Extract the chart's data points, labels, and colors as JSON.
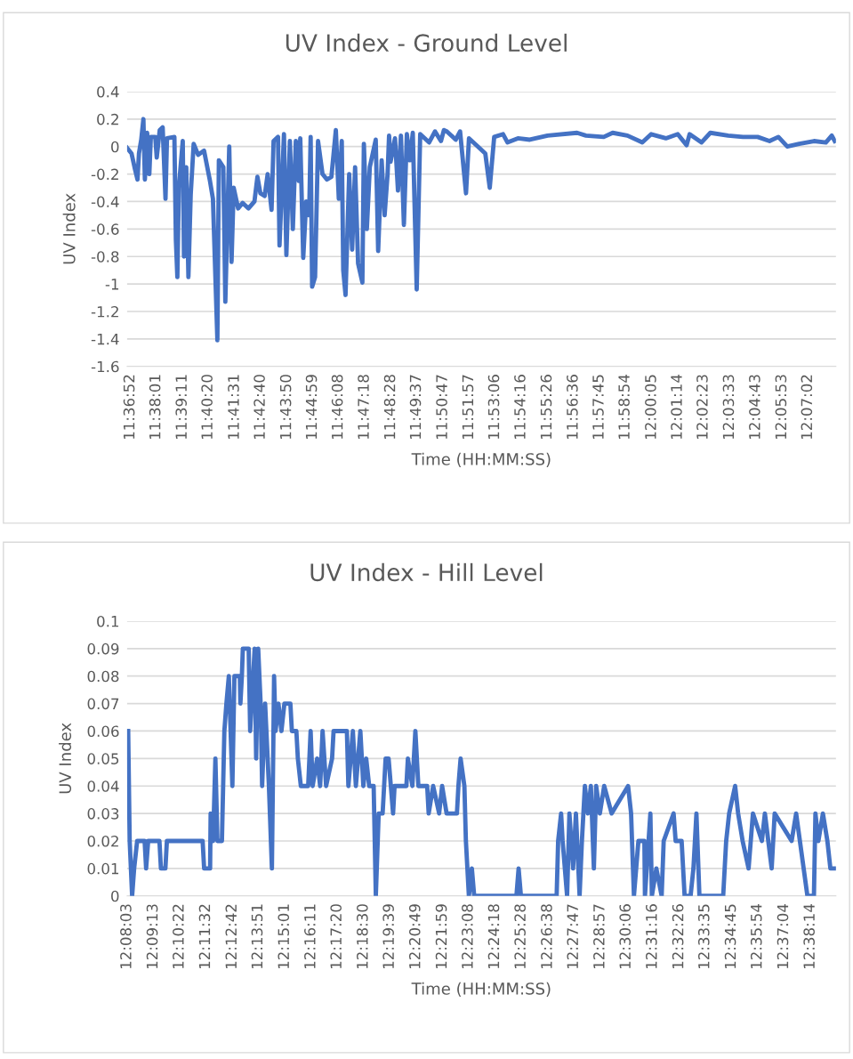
{
  "chart_data": [
    {
      "type": "line",
      "title": "UV Index - Ground Level",
      "xlabel": "Time (HH:MM:SS)",
      "ylabel": "UV Index",
      "grid": "y",
      "marker": "none",
      "line_style": "solid",
      "xlim": [
        11.612,
        12.138
      ],
      "ylim": [
        -1.6,
        0.4
      ],
      "yticks": [
        -1.6,
        -1.4,
        -1.2,
        -1,
        -0.8,
        -0.6,
        -0.4,
        -0.2,
        0,
        0.2,
        0.4
      ],
      "xticks": [
        {
          "value": 11.6144,
          "label": "11:36:52"
        },
        {
          "value": 11.6336,
          "label": "11:38:01"
        },
        {
          "value": 11.6531,
          "label": "11:39:11"
        },
        {
          "value": 11.6722,
          "label": "11:40:20"
        },
        {
          "value": 11.6919,
          "label": "11:41:31"
        },
        {
          "value": 11.7111,
          "label": "11:42:40"
        },
        {
          "value": 11.7306,
          "label": "11:43:50"
        },
        {
          "value": 11.7497,
          "label": "11:44:59"
        },
        {
          "value": 11.7689,
          "label": "11:46:08"
        },
        {
          "value": 11.7883,
          "label": "11:47:18"
        },
        {
          "value": 11.8078,
          "label": "11:48:28"
        },
        {
          "value": 11.8269,
          "label": "11:49:37"
        },
        {
          "value": 11.8464,
          "label": "11:50:47"
        },
        {
          "value": 11.8658,
          "label": "11:51:57"
        },
        {
          "value": 11.885,
          "label": "11:53:06"
        },
        {
          "value": 11.9044,
          "label": "11:54:16"
        },
        {
          "value": 11.9239,
          "label": "11:55:26"
        },
        {
          "value": 11.9433,
          "label": "11:56:36"
        },
        {
          "value": 11.9625,
          "label": "11:57:45"
        },
        {
          "value": 11.9817,
          "label": "11:58:54"
        },
        {
          "value": 12.0014,
          "label": "12:00:05"
        },
        {
          "value": 12.0206,
          "label": "12:01:14"
        },
        {
          "value": 12.0397,
          "label": "12:02:23"
        },
        {
          "value": 12.0592,
          "label": "12:03:33"
        },
        {
          "value": 12.0786,
          "label": "12:04:43"
        },
        {
          "value": 12.0981,
          "label": "12:05:53"
        },
        {
          "value": 12.1172,
          "label": "12:07:02"
        }
      ],
      "series": [
        {
          "color": "#4472c4",
          "x": [
            11.612,
            11.6153,
            11.6175,
            11.6197,
            11.6208,
            11.6225,
            11.6241,
            11.6252,
            11.6269,
            11.6285,
            11.6296,
            11.6329,
            11.634,
            11.6362,
            11.6384,
            11.6405,
            11.6416,
            11.6471,
            11.6482,
            11.6493,
            11.6504,
            11.6533,
            11.6542,
            11.6559,
            11.6575,
            11.6592,
            11.6614,
            11.6647,
            11.6691,
            11.6735,
            11.6757,
            11.679,
            11.6801,
            11.6834,
            11.6849,
            11.6878,
            11.6895,
            11.6911,
            11.6944,
            11.6977,
            11.7021,
            11.7065,
            11.7087,
            11.7109,
            11.7141,
            11.7163,
            11.7192,
            11.7207,
            11.724,
            11.7251,
            11.7284,
            11.7302,
            11.7328,
            11.735,
            11.7372,
            11.7394,
            11.7405,
            11.7427,
            11.7449,
            11.7471,
            11.7482,
            11.7493,
            11.7515,
            11.7537,
            11.757,
            11.7603,
            11.7636,
            11.7669,
            11.7691,
            11.7713,
            11.7724,
            11.7741,
            11.7768,
            11.779,
            11.7812,
            11.7834,
            11.7866,
            11.7877,
            11.7899,
            11.7921,
            11.7965,
            11.7983,
            11.8009,
            11.8031,
            11.8053,
            11.8064,
            11.8075,
            11.8108,
            11.813,
            11.8152,
            11.8174,
            11.8196,
            11.8218,
            11.824,
            11.8269,
            11.8295,
            11.8361,
            11.8405,
            11.8449,
            11.8471,
            11.8493,
            11.8559,
            11.8591,
            11.8635,
            11.8657,
            11.8734,
            11.8778,
            11.8811,
            11.8844,
            11.891,
            11.8943,
            11.902,
            11.9108,
            11.924,
            11.9459,
            11.9525,
            11.9657,
            11.9723,
            11.9833,
            11.9943,
            12.0009,
            12.0118,
            12.0206,
            12.0272,
            12.0294,
            12.0382,
            12.0448,
            12.058,
            12.069,
            12.0799,
            12.0887,
            12.0953,
            12.1019,
            12.1107,
            12.1217,
            12.1305,
            12.1349,
            12.1371
          ],
          "values": [
            -0.01,
            -0.05,
            -0.15,
            -0.24,
            -0.05,
            0.05,
            0.2,
            -0.24,
            0.1,
            -0.2,
            0.07,
            0.07,
            -0.08,
            0.12,
            0.14,
            -0.38,
            0.06,
            0.07,
            -0.68,
            -0.95,
            -0.3,
            0.04,
            -0.8,
            -0.15,
            -0.95,
            -0.35,
            0.02,
            -0.06,
            -0.03,
            -0.25,
            -0.38,
            -1.41,
            -0.1,
            -0.15,
            -1.13,
            0,
            -0.84,
            -0.3,
            -0.45,
            -0.41,
            -0.45,
            -0.4,
            -0.22,
            -0.34,
            -0.36,
            -0.2,
            -0.46,
            0.04,
            0.07,
            -0.72,
            0.09,
            -0.79,
            0.04,
            -0.6,
            0.04,
            -0.25,
            0.06,
            -0.81,
            -0.4,
            -0.5,
            0.07,
            -1.02,
            -0.95,
            0.04,
            -0.2,
            -0.24,
            -0.22,
            0.12,
            -0.38,
            0.04,
            -0.9,
            -1.08,
            -0.2,
            -0.75,
            -0.15,
            -0.85,
            -0.99,
            0.02,
            -0.6,
            -0.15,
            0.05,
            -0.76,
            -0.1,
            -0.5,
            -0.2,
            0.08,
            -0.11,
            0.06,
            -0.32,
            0.08,
            -0.57,
            0.09,
            -0.1,
            0.1,
            -1.04,
            0.09,
            0.03,
            0.11,
            0.04,
            0.12,
            0.11,
            0.05,
            0.11,
            -0.34,
            0.06,
            -0.01,
            -0.05,
            -0.3,
            0.07,
            0.09,
            0.03,
            0.06,
            0.05,
            0.08,
            0.1,
            0.08,
            0.07,
            0.1,
            0.08,
            0.03,
            0.09,
            0.06,
            0.09,
            0.01,
            0.09,
            0.03,
            0.1,
            0.08,
            0.07,
            0.07,
            0.04,
            0.07,
            0,
            0.02,
            0.04,
            0.03,
            0.08,
            0.04
          ]
        }
      ]
    },
    {
      "type": "line",
      "title": "UV Index - Hill Level",
      "xlabel": "Time (HH:MM:SS)",
      "ylabel": "UV Index",
      "grid": "y",
      "marker": "none",
      "line_style": "solid",
      "xlim": [
        12.1342,
        12.656
      ],
      "ylim": [
        0,
        0.1
      ],
      "yticks": [
        0,
        0.01,
        0.02,
        0.03,
        0.04,
        0.05,
        0.06,
        0.07,
        0.08,
        0.09,
        0.1
      ],
      "xticks": [
        {
          "value": 12.1342,
          "label": "12:08:03"
        },
        {
          "value": 12.1536,
          "label": "12:09:13"
        },
        {
          "value": 12.1728,
          "label": "12:10:22"
        },
        {
          "value": 12.1922,
          "label": "12:11:32"
        },
        {
          "value": 12.2117,
          "label": "12:12:42"
        },
        {
          "value": 12.2308,
          "label": "12:13:51"
        },
        {
          "value": 12.2503,
          "label": "12:15:01"
        },
        {
          "value": 12.2697,
          "label": "12:16:11"
        },
        {
          "value": 12.2889,
          "label": "12:17:20"
        },
        {
          "value": 12.3083,
          "label": "12:18:30"
        },
        {
          "value": 12.3275,
          "label": "12:19:39"
        },
        {
          "value": 12.3469,
          "label": "12:20:49"
        },
        {
          "value": 12.3664,
          "label": "12:21:59"
        },
        {
          "value": 12.3856,
          "label": "12:23:08"
        },
        {
          "value": 12.405,
          "label": "12:24:18"
        },
        {
          "value": 12.4244,
          "label": "12:25:28"
        },
        {
          "value": 12.4439,
          "label": "12:26:38"
        },
        {
          "value": 12.4631,
          "label": "12:27:47"
        },
        {
          "value": 12.4825,
          "label": "12:28:57"
        },
        {
          "value": 12.5017,
          "label": "12:30:06"
        },
        {
          "value": 12.5211,
          "label": "12:31:16"
        },
        {
          "value": 12.5406,
          "label": "12:32:26"
        },
        {
          "value": 12.5597,
          "label": "12:33:35"
        },
        {
          "value": 12.5792,
          "label": "12:34:45"
        },
        {
          "value": 12.5983,
          "label": "12:35:54"
        },
        {
          "value": 12.6178,
          "label": "12:37:04"
        },
        {
          "value": 12.6372,
          "label": "12:38:14"
        }
      ],
      "series": [
        {
          "color": "#4472c4",
          "x": [
            12.135,
            12.1361,
            12.1379,
            12.1394,
            12.1416,
            12.1471,
            12.1482,
            12.1497,
            12.158,
            12.1591,
            12.1624,
            12.1635,
            12.1898,
            12.1909,
            12.1953,
            12.1957,
            12.1975,
            12.1992,
            12.2007,
            12.204,
            12.2058,
            12.2073,
            12.2091,
            12.2117,
            12.2132,
            12.2172,
            12.2176,
            12.2187,
            12.2194,
            12.2237,
            12.2248,
            12.2281,
            12.2292,
            12.2307,
            12.2325,
            12.2336,
            12.2358,
            12.2386,
            12.2408,
            12.2424,
            12.2435,
            12.2456,
            12.2478,
            12.25,
            12.2544,
            12.2555,
            12.2588,
            12.2599,
            12.2621,
            12.2675,
            12.2693,
            12.2708,
            12.2741,
            12.2763,
            12.2781,
            12.2807,
            12.2851,
            12.2862,
            12.296,
            12.2971,
            12.3004,
            12.3026,
            12.3059,
            12.3081,
            12.3102,
            12.3124,
            12.3157,
            12.3173,
            12.3194,
            12.3223,
            12.3245,
            12.3267,
            12.33,
            12.3311,
            12.3398,
            12.3409,
            12.3442,
            12.3464,
            12.3486,
            12.3551,
            12.3562,
            12.3595,
            12.3639,
            12.3661,
            12.3694,
            12.377,
            12.3781,
            12.3797,
            12.3825,
            12.3836,
            12.3847,
            12.3858,
            12.388,
            12.3897,
            12.4208,
            12.4224,
            12.4241,
            12.4504,
            12.4515,
            12.4537,
            12.4548,
            12.4581,
            12.4598,
            12.4625,
            12.4646,
            12.4673,
            12.469,
            12.4712,
            12.4734,
            12.4756,
            12.4778,
            12.4795,
            12.4822,
            12.4854,
            12.4909,
            12.503,
            12.5052,
            12.5073,
            12.5106,
            12.515,
            12.5154,
            12.5194,
            12.5205,
            12.5238,
            12.5277,
            12.5292,
            12.5365,
            12.538,
            12.5424,
            12.5446,
            12.549,
            12.5511,
            12.5533,
            12.5555,
            12.573,
            12.5752,
            12.5774,
            12.5818,
            12.584,
            12.5873,
            12.5917,
            12.5949,
            12.6015,
            12.6037,
            12.6087,
            12.6109,
            12.6234,
            12.6267,
            12.635,
            12.6398,
            12.6409,
            12.6431,
            12.6464,
            12.6497,
            12.6519,
            12.6552
          ],
          "values": [
            0.06,
            0.02,
            0,
            0.01,
            0.02,
            0.02,
            0.01,
            0.02,
            0.02,
            0.01,
            0.01,
            0.02,
            0.02,
            0.01,
            0.01,
            0.03,
            0.02,
            0.05,
            0.02,
            0.02,
            0.06,
            0.07,
            0.08,
            0.04,
            0.08,
            0.08,
            0.07,
            0.08,
            0.09,
            0.09,
            0.06,
            0.09,
            0.05,
            0.09,
            0.07,
            0.04,
            0.07,
            0.04,
            0.01,
            0.08,
            0.06,
            0.07,
            0.06,
            0.07,
            0.07,
            0.06,
            0.06,
            0.05,
            0.04,
            0.04,
            0.06,
            0.04,
            0.05,
            0.04,
            0.06,
            0.04,
            0.05,
            0.06,
            0.06,
            0.04,
            0.06,
            0.04,
            0.06,
            0.04,
            0.05,
            0.04,
            0.04,
            0,
            0.03,
            0.03,
            0.05,
            0.05,
            0.03,
            0.04,
            0.04,
            0.05,
            0.04,
            0.06,
            0.04,
            0.04,
            0.03,
            0.04,
            0.03,
            0.04,
            0.03,
            0.03,
            0.04,
            0.05,
            0.04,
            0.02,
            0.01,
            0,
            0.01,
            0,
            0,
            0.01,
            0,
            0,
            0.02,
            0.03,
            0.02,
            0,
            0.03,
            0.01,
            0.03,
            0,
            0.02,
            0.04,
            0.03,
            0.04,
            0.01,
            0.04,
            0.03,
            0.04,
            0.03,
            0.04,
            0.03,
            0,
            0.02,
            0.02,
            0,
            0.03,
            0,
            0.01,
            0,
            0.02,
            0.03,
            0.02,
            0.02,
            0,
            0,
            0.01,
            0.03,
            0,
            0,
            0.02,
            0.03,
            0.04,
            0.03,
            0.02,
            0.01,
            0.03,
            0.02,
            0.03,
            0.01,
            0.03,
            0.02,
            0.03,
            0,
            0,
            0.03,
            0.02,
            0.03,
            0.02,
            0.01,
            0.01
          ]
        }
      ]
    }
  ]
}
